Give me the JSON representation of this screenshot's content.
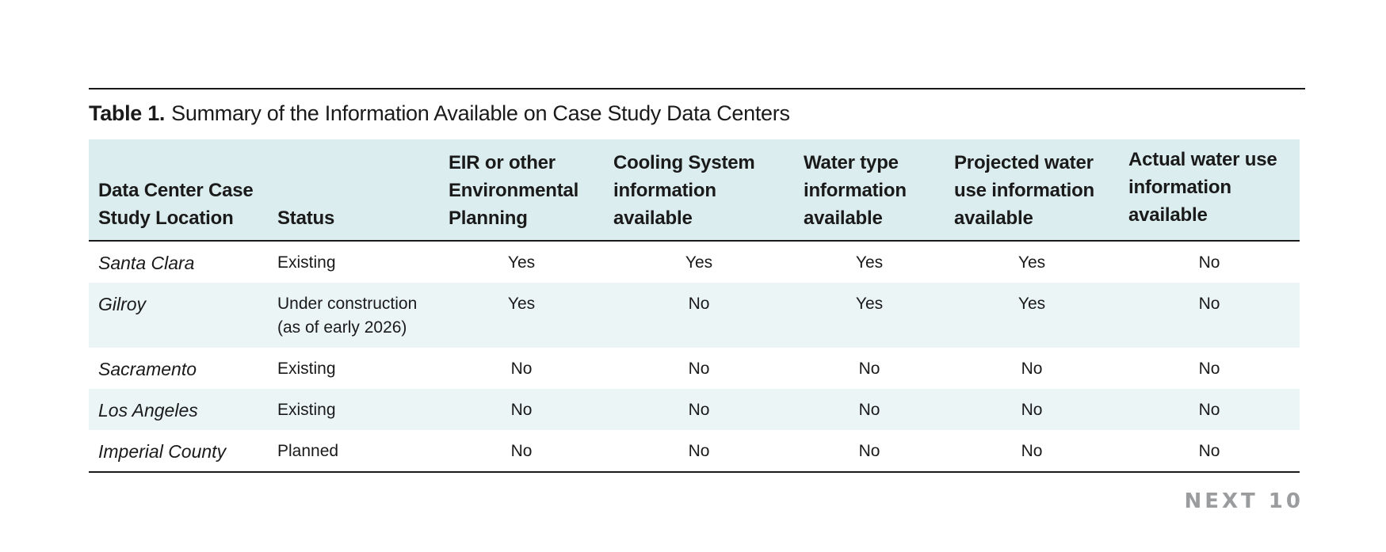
{
  "caption": {
    "number": "Table 1.",
    "text": "Summary of the Information Available on Case Study Data Centers"
  },
  "table": {
    "headers": [
      "Data Center Case Study Location",
      "Status",
      "EIR or other Environmental Planning",
      "Cooling System information available",
      "Water type information available",
      "Projected water use information available",
      "Actual water use information available"
    ],
    "rows": [
      {
        "location": "Santa Clara",
        "status": "Existing",
        "eir": "Yes",
        "cooling": "Yes",
        "water_type": "Yes",
        "projected": "Yes",
        "actual": "No"
      },
      {
        "location": "Gilroy",
        "status": "Under construction (as of early 2026)",
        "eir": "Yes",
        "cooling": "No",
        "water_type": "Yes",
        "projected": "Yes",
        "actual": "No"
      },
      {
        "location": "Sacramento",
        "status": "Existing",
        "eir": "No",
        "cooling": "No",
        "water_type": "No",
        "projected": "No",
        "actual": "No"
      },
      {
        "location": "Los Angeles",
        "status": "Existing",
        "eir": "No",
        "cooling": "No",
        "water_type": "No",
        "projected": "No",
        "actual": "No"
      },
      {
        "location": "Imperial County",
        "status": "Planned",
        "eir": "No",
        "cooling": "No",
        "water_type": "No",
        "projected": "No",
        "actual": "No"
      }
    ]
  },
  "brand": "NEXT 10",
  "colors": {
    "header_bg": "#dcedef",
    "stripe_bg": "#ebf5f6",
    "rule": "#1a1a1a",
    "brand": "#9a9c9e"
  }
}
